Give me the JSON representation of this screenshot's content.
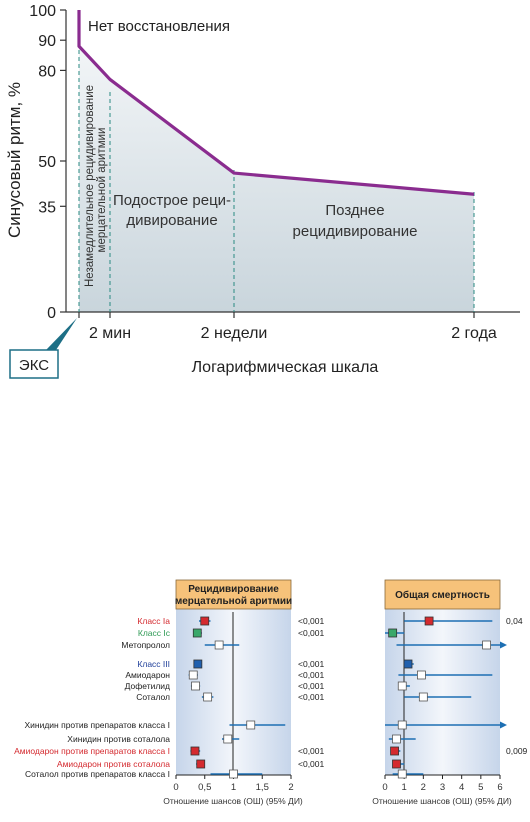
{
  "chart_data": [
    {
      "type": "line",
      "ylabel": "Синусовый ритм, %",
      "xlabel": "Логарифмическая шкала",
      "y_ticks": [
        "100",
        "90",
        "80",
        "50",
        "35",
        "0"
      ],
      "x_ticks": [
        "2 мин",
        "2 недели",
        "2 года"
      ],
      "ylim": [
        0,
        100
      ],
      "points": [
        {
          "x": "0",
          "y": 100
        },
        {
          "x": "0",
          "y": 88
        },
        {
          "x": "2 мин",
          "y": 77
        },
        {
          "x": "2 недели",
          "y": 46
        },
        {
          "x": "2 года",
          "y": 39
        }
      ],
      "annotations": {
        "no_restoration": "Нет восстановления",
        "immediate_recurrence_line1": "Незамедлительное рецидивирование",
        "immediate_recurrence_line2": "мерцательной аритмии",
        "subacute_line1": "Подострое реци-",
        "subacute_line2": "дивирование",
        "late_line1": "Позднее",
        "late_line2": "рецидивирование",
        "eks": "ЭКС"
      },
      "colors": {
        "line": "#8a2c8f",
        "fill": "#dfe6ea",
        "guide": "#2a8a82"
      }
    },
    {
      "type": "scatter",
      "title_line1": "Рецидивирование",
      "title_line2": "мерцательной аритмии",
      "xlabel": "Отношение шансов (ОШ) (95% ДИ)",
      "x_ticks": [
        "0",
        "0,5",
        "1",
        "1,5",
        "2"
      ],
      "xlim": [
        0,
        2
      ],
      "rows": [
        {
          "label": "Класс Ia",
          "or": 0.5,
          "ci": [
            0.4,
            0.6
          ],
          "p": "<0,001",
          "marker": "red",
          "label_color": "red"
        },
        {
          "label": "Класс Ic",
          "or": 0.37,
          "ci": [
            0.3,
            0.45
          ],
          "p": "<0,001",
          "marker": "green",
          "label_color": "green"
        },
        {
          "label": "Метопролол",
          "or": 0.75,
          "ci": [
            0.5,
            1.1
          ],
          "p": "",
          "marker": "white",
          "label_color": "black"
        },
        {
          "label": "Класс III",
          "or": 0.38,
          "ci": [
            0.32,
            0.45
          ],
          "p": "<0,001",
          "marker": "blue",
          "label_color": "blue"
        },
        {
          "label": "Амиодарон",
          "or": 0.3,
          "ci": [
            0.22,
            0.38
          ],
          "p": "<0,001",
          "marker": "white",
          "label_color": "black"
        },
        {
          "label": "Дофетилид",
          "or": 0.34,
          "ci": [
            0.26,
            0.42
          ],
          "p": "<0,001",
          "marker": "white",
          "label_color": "black"
        },
        {
          "label": "Соталол",
          "or": 0.55,
          "ci": [
            0.45,
            0.65
          ],
          "p": "<0,001",
          "marker": "white",
          "label_color": "black"
        },
        {
          "label": "Хинидин против препаратов класса I",
          "or": 1.3,
          "ci": [
            0.93,
            1.9
          ],
          "p": "",
          "marker": "white",
          "label_color": "black"
        },
        {
          "label": "Хинидин против соталола",
          "or": 0.9,
          "ci": [
            0.8,
            1.1
          ],
          "p": "",
          "marker": "white",
          "label_color": "black"
        },
        {
          "label": "Амиодарон против препаратов класса I",
          "or": 0.33,
          "ci": [
            0.25,
            0.42
          ],
          "p": "<0,001",
          "marker": "red",
          "label_color": "red"
        },
        {
          "label": "Амиодарон против соталола",
          "or": 0.43,
          "ci": [
            0.35,
            0.5
          ],
          "p": "<0,001",
          "marker": "red",
          "label_color": "red"
        },
        {
          "label": "Соталол против препаратов класса I",
          "or": 1.0,
          "ci": [
            0.6,
            1.5
          ],
          "p": "",
          "marker": "white",
          "label_color": "black"
        }
      ]
    },
    {
      "type": "scatter",
      "title_line1": "Общая смертность",
      "xlabel": "Отношение шансов (ОШ) (95% ДИ)",
      "x_ticks": [
        "0",
        "1",
        "2",
        "3",
        "4",
        "5",
        "6"
      ],
      "xlim": [
        0,
        6
      ],
      "rows": [
        {
          "or": 2.3,
          "ci": [
            1.0,
            5.6
          ],
          "p": "0,04",
          "marker": "red",
          "arrow": false
        },
        {
          "or": 0.4,
          "ci": [
            0.0,
            1.0
          ],
          "p": "",
          "marker": "green",
          "arrow": false
        },
        {
          "or": 5.3,
          "ci": [
            0.6,
            6.0
          ],
          "p": "",
          "marker": "white",
          "arrow": true
        },
        {
          "or": 1.2,
          "ci": [
            1.0,
            1.5
          ],
          "p": "",
          "marker": "blue",
          "arrow": false
        },
        {
          "or": 1.9,
          "ci": [
            0.7,
            5.6
          ],
          "p": "",
          "marker": "white",
          "arrow": false
        },
        {
          "or": 0.9,
          "ci": [
            0.7,
            1.3
          ],
          "p": "",
          "marker": "white",
          "arrow": false
        },
        {
          "or": 2.0,
          "ci": [
            1.0,
            4.5
          ],
          "p": "",
          "marker": "white",
          "arrow": false
        },
        {
          "or": 0.9,
          "ci": [
            0.0,
            6.0
          ],
          "p": "",
          "marker": "white",
          "arrow": true
        },
        {
          "or": 0.6,
          "ci": [
            0.2,
            1.6
          ],
          "p": "",
          "marker": "white",
          "arrow": false
        },
        {
          "or": 0.5,
          "ci": [
            0.3,
            0.8
          ],
          "p": "0,009",
          "marker": "red",
          "arrow": false
        },
        {
          "or": 0.6,
          "ci": [
            0.4,
            1.0
          ],
          "p": "",
          "marker": "red",
          "arrow": false
        },
        {
          "or": 0.9,
          "ci": [
            0.4,
            2.0
          ],
          "p": "",
          "marker": "white",
          "arrow": false
        }
      ]
    }
  ],
  "colors": {
    "red": "#d42a2f",
    "green": "#3aa86a",
    "blue": "#1f5fae",
    "ci_line": "#1d6fb3",
    "header_bg": "#f6c27a",
    "panel_bg_edge": "#c6d5ea",
    "panel_bg_mid": "#f3f6fb"
  }
}
